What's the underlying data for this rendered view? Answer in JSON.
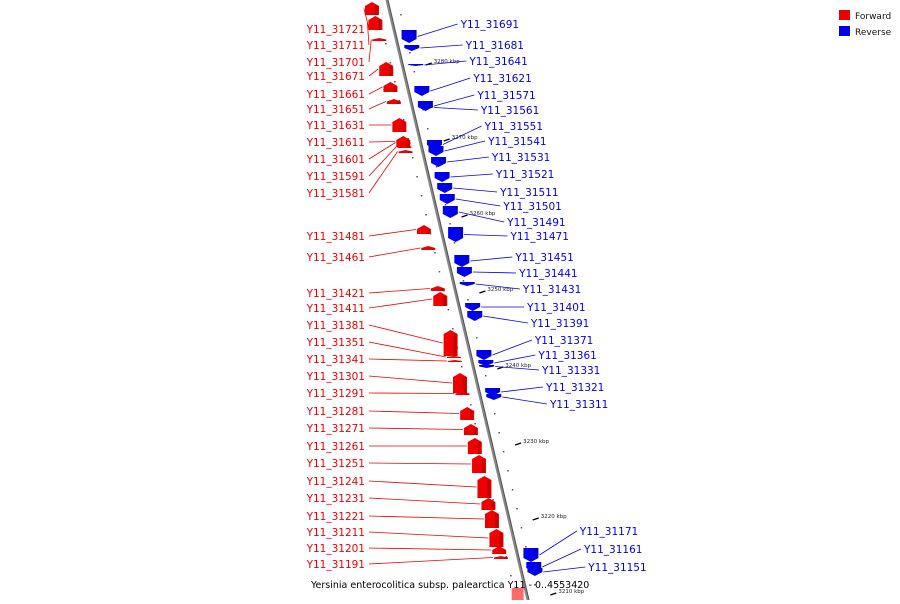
{
  "colors": {
    "forward": "#ee0000",
    "reverse": "#0000ee",
    "backbone": "#888888"
  },
  "legend": {
    "forward": "Forward",
    "reverse": "Reverse"
  },
  "sequence_title": "Yersinia enterocolitica subsp. palearctica Y11 - 0..4553420",
  "ticks": [
    "3280 kbp",
    "3270 kbp",
    "3260 kbp",
    "3250 kbp",
    "3240 kbp",
    "3230 kbp",
    "3220 kbp",
    "3210 kbp"
  ],
  "forward_genes": [
    "Y11_31721",
    "Y11_31711",
    "Y11_31701",
    "Y11_31671",
    "Y11_31661",
    "Y11_31651",
    "Y11_31631",
    "Y11_31611",
    "Y11_31601",
    "Y11_31591",
    "Y11_31581",
    "Y11_31481",
    "Y11_31461",
    "Y11_31421",
    "Y11_31411",
    "Y11_31381",
    "Y11_31351",
    "Y11_31341",
    "Y11_31301",
    "Y11_31291",
    "Y11_31281",
    "Y11_31271",
    "Y11_31261",
    "Y11_31251",
    "Y11_31241",
    "Y11_31231",
    "Y11_31221",
    "Y11_31211",
    "Y11_31201",
    "Y11_31191"
  ],
  "reverse_genes": [
    "Y11_31691",
    "Y11_31681",
    "Y11_31641",
    "Y11_31621",
    "Y11_31571",
    "Y11_31561",
    "Y11_31551",
    "Y11_31541",
    "Y11_31531",
    "Y11_31521",
    "Y11_31511",
    "Y11_31501",
    "Y11_31491",
    "Y11_31471",
    "Y11_31451",
    "Y11_31441",
    "Y11_31431",
    "Y11_31401",
    "Y11_31391",
    "Y11_31371",
    "Y11_31361",
    "Y11_31331",
    "Y11_31321",
    "Y11_31311",
    "Y11_31171",
    "Y11_31161",
    "Y11_31151"
  ]
}
